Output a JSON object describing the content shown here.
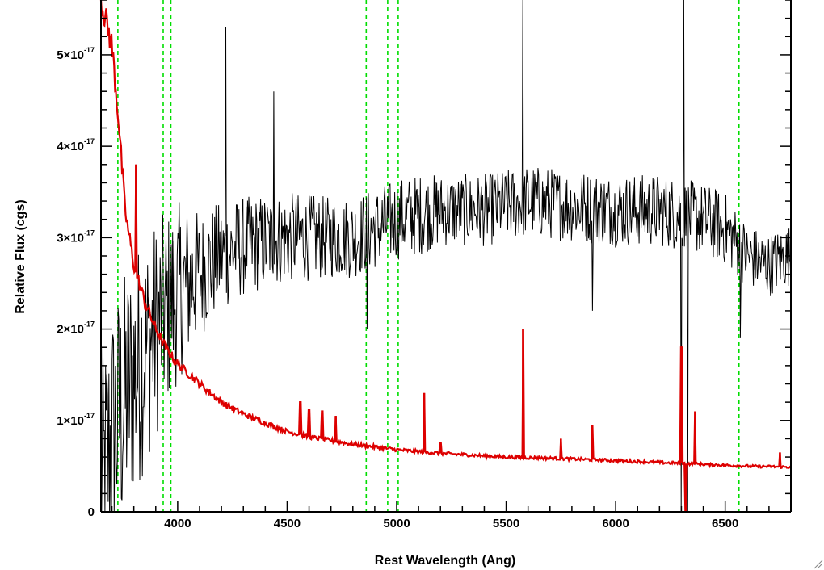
{
  "chart_data": {
    "type": "line",
    "title": "",
    "xlabel": "Rest Wavelength (Ang)",
    "ylabel": "Relative Flux (cgs)",
    "xlim": [
      3650,
      6800
    ],
    "ylim": [
      0,
      5.6e-17
    ],
    "x_ticks": [
      {
        "value": 4000,
        "label": "4000"
      },
      {
        "value": 4500,
        "label": "4500"
      },
      {
        "value": 5000,
        "label": "5000"
      },
      {
        "value": 5500,
        "label": "5500"
      },
      {
        "value": 6000,
        "label": "6000"
      },
      {
        "value": 6500,
        "label": "6500"
      }
    ],
    "y_ticks": [
      {
        "value": 0,
        "mantissa": "0",
        "exponent": ""
      },
      {
        "value": 1e-17,
        "mantissa": "1×10",
        "exponent": "-17"
      },
      {
        "value": 2e-17,
        "mantissa": "2×10",
        "exponent": "-17"
      },
      {
        "value": 3e-17,
        "mantissa": "3×10",
        "exponent": "-17"
      },
      {
        "value": 4e-17,
        "mantissa": "4×10",
        "exponent": "-17"
      },
      {
        "value": 5e-17,
        "mantissa": "5×10",
        "exponent": "-17"
      }
    ],
    "reference_lines": {
      "color": "#00dd00",
      "style": "dashed",
      "wavelengths": [
        3727,
        3934,
        3969,
        4861,
        4959,
        5007,
        6563
      ]
    },
    "series": [
      {
        "color": "#000000",
        "style": "noisy spectrum",
        "x": [
          3650,
          3700,
          3800,
          3900,
          4000,
          4100,
          4200,
          4300,
          4500,
          4700,
          4800,
          4900,
          5000,
          5100,
          5200,
          5400,
          5500,
          5600,
          5800,
          6000,
          6200,
          6300,
          6400,
          6500,
          6600,
          6700,
          6780
        ],
        "y": [
          2e-18,
          8e-18,
          1.5e-17,
          2e-17,
          2.4e-17,
          2.6e-17,
          2.8e-17,
          2.9e-17,
          3e-17,
          3e-17,
          3e-17,
          3.1e-17,
          3.2e-17,
          3.25e-17,
          3.3e-17,
          3.3e-17,
          3.35e-17,
          3.4e-17,
          3.35e-17,
          3.3e-17,
          3.3e-17,
          3.25e-17,
          3.2e-17,
          3.1e-17,
          2.8e-17,
          2.7e-17,
          2.8e-17
        ],
        "noise": [
          1.5e-17,
          1.5e-17,
          1.4e-17,
          1.2e-17,
          1e-17,
          7e-18,
          6e-18,
          5.5e-18,
          5e-18,
          4.5e-18,
          4.5e-18,
          4.5e-18,
          4.5e-18,
          4.5e-18,
          4e-18,
          4e-18,
          4e-18,
          4e-18,
          4e-18,
          4e-18,
          4e-18,
          4e-18,
          4e-18,
          4e-18,
          3.5e-18,
          3.5e-18,
          3.5e-18
        ],
        "spikes": [
          {
            "x": 4220,
            "y": 5.3e-17
          },
          {
            "x": 4440,
            "y": 4.6e-17
          },
          {
            "x": 4865,
            "y": 2e-17
          },
          {
            "x": 5577,
            "y": 5.6e-17
          },
          {
            "x": 5893,
            "y": 2.2e-17
          },
          {
            "x": 6300,
            "y": 0.0
          },
          {
            "x": 6310,
            "y": 5.6e-17
          },
          {
            "x": 6330,
            "y": 0.0
          },
          {
            "x": 6570,
            "y": 1.9e-17
          }
        ]
      },
      {
        "color": "#dd0000",
        "style": "smooth model",
        "x": [
          3650,
          3700,
          3730,
          3760,
          3800,
          3850,
          3900,
          3950,
          4000,
          4100,
          4200,
          4300,
          4400,
          4500,
          4600,
          4700,
          4800,
          5000,
          5200,
          5500,
          5800,
          6000,
          6200,
          6400,
          6600,
          6800
        ],
        "y": [
          5.6e-17,
          5.1e-17,
          4.3e-17,
          3.3e-17,
          2.7e-17,
          2.3e-17,
          2e-17,
          1.78e-17,
          1.62e-17,
          1.4e-17,
          1.2e-17,
          1.07e-17,
          9.7e-18,
          8.8e-18,
          8.2e-18,
          7.8e-18,
          7.4e-18,
          6.8e-18,
          6.4e-18,
          6e-18,
          5.8e-18,
          5.6e-18,
          5.4e-18,
          5.2e-18,
          5e-18,
          4.9e-18
        ],
        "emission_lines": [
          {
            "x": 3810,
            "y": 3.8e-17
          },
          {
            "x": 4560,
            "y": 1.2e-17
          },
          {
            "x": 4600,
            "y": 1.12e-17
          },
          {
            "x": 4660,
            "y": 1.1e-17
          },
          {
            "x": 4722,
            "y": 1.05e-17
          },
          {
            "x": 5125,
            "y": 1.3e-17
          },
          {
            "x": 5200,
            "y": 7.5e-18
          },
          {
            "x": 5577,
            "y": 2e-17
          },
          {
            "x": 5750,
            "y": 8e-18
          },
          {
            "x": 5893,
            "y": 9.5e-18
          },
          {
            "x": 6300,
            "y": 1.8e-17
          },
          {
            "x": 6320,
            "y": 0.0
          },
          {
            "x": 6363,
            "y": 1.1e-17
          },
          {
            "x": 6750,
            "y": 6.5e-18
          }
        ]
      }
    ]
  }
}
